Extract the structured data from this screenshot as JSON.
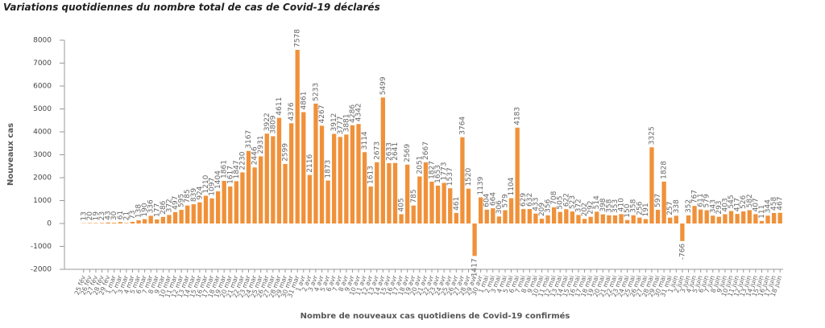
{
  "chart_data": {
    "type": "bar",
    "title": "Variations quotidiennes du nombre total de cas de Covid-19 déclarés",
    "y_label": "Nouveaux cas",
    "x_label": "Nombre de nouveaux cas quotidiens de Covid-19 confirmés",
    "color": "#f0913a",
    "ylim": [
      -2000,
      8000
    ],
    "yticks": [
      -2000,
      -1000,
      0,
      1000,
      2000,
      3000,
      4000,
      5000,
      6000,
      7000,
      8000
    ],
    "categories": [
      "25 fév",
      "26 fév",
      "27 fév",
      "28 fév",
      "29 fév",
      "1 mar",
      "2 mar",
      "3 mar",
      "4 mar",
      "5 mar",
      "6 mar",
      "7 mar",
      "8 mar",
      "9 mar",
      "10 mar",
      "11 mar",
      "12 mar",
      "13 mar",
      "14 mar",
      "15 mar",
      "16 mar",
      "17 mar",
      "18 mar",
      "19 mar",
      "20 mar",
      "21 mar",
      "22 mar",
      "23 mar",
      "24 mar",
      "25 mar",
      "26 mar",
      "27 mar",
      "28 mar",
      "29 mar",
      "30 mar",
      "31 mar",
      "1 avr",
      "2 avr",
      "3 avr",
      "4 avr",
      "5 avr",
      "6 avr",
      "7 avr",
      "8 avr",
      "9 avr",
      "10 avr",
      "11 avr",
      "12 avr",
      "13 avr",
      "14 avr",
      "15 avr",
      "16 avr",
      "17 avr",
      "18 avr",
      "19 avr",
      "20 avr",
      "21 avr",
      "22 avr",
      "23 avr",
      "24 avr",
      "25 avr",
      "26 avr",
      "27 avr",
      "28 avr",
      "29 avr",
      "30 avr",
      "1 mai",
      "2 mai",
      "3 mai",
      "4 mai",
      "5 mai",
      "6 mai",
      "7 mai",
      "8 mai",
      "9 mai",
      "10 mai",
      "11 mai",
      "12 mai",
      "13 mai",
      "14 mai",
      "15 mai",
      "16 mai",
      "17 mai",
      "18 mai",
      "19 mai",
      "20 mai",
      "21 mai",
      "22 mai",
      "23 mai",
      "24 mai",
      "25 mai",
      "26 mai",
      "27 mai",
      "28 mai",
      "29 mai",
      "30 mai",
      "31 mai",
      "1 juin",
      "2 juin",
      "3 juin",
      "4 juin",
      "5 juin",
      "6 juin",
      "7 juin",
      "8 juin",
      "9 juin",
      "10 juin",
      "11 juin",
      "12 juin",
      "13 juin",
      "14 juin",
      "15 juin",
      "16 juin",
      "17 juin",
      "18 juin"
    ],
    "values": [
      13,
      20,
      19,
      23,
      43,
      30,
      61,
      21,
      73,
      138,
      190,
      336,
      177,
      286,
      372,
      497,
      595,
      785,
      839,
      924,
      1210,
      1097,
      1404,
      1861,
      1617,
      1847,
      2230,
      3167,
      2446,
      2931,
      3922,
      3809,
      4611,
      2599,
      4376,
      7578,
      4861,
      2116,
      5233,
      4267,
      1873,
      3912,
      3777,
      3881,
      4286,
      4342,
      3114,
      1613,
      2673,
      5499,
      2633,
      2641,
      405,
      2569,
      785,
      2051,
      2667,
      1827,
      1653,
      1773,
      1537,
      461,
      3764,
      1520,
      -1417,
      1139,
      604,
      664,
      306,
      579,
      1104,
      4183,
      629,
      632,
      433,
      209,
      356,
      708,
      505,
      622,
      523,
      372,
      202,
      292,
      514,
      398,
      358,
      353,
      410,
      150,
      358,
      256,
      191,
      3325,
      597,
      1828,
      257,
      338,
      -766,
      352,
      767,
      611,
      579,
      343,
      293,
      403,
      545,
      417,
      526,
      582,
      407,
      111,
      344,
      458,
      467
    ]
  }
}
